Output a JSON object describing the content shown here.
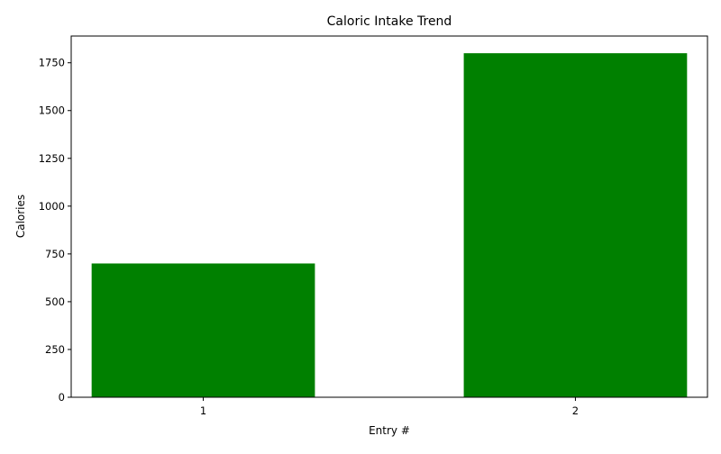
{
  "chart_data": {
    "type": "bar",
    "title": "Caloric Intake Trend",
    "xlabel": "Entry #",
    "ylabel": "Calories",
    "categories": [
      "1",
      "2"
    ],
    "values": [
      700,
      1800
    ],
    "ylim": [
      0,
      1890
    ],
    "yticks": [
      0,
      250,
      500,
      750,
      1000,
      1250,
      1500,
      1750
    ],
    "bar_color": "#008000",
    "grid": false,
    "legend": "none"
  }
}
